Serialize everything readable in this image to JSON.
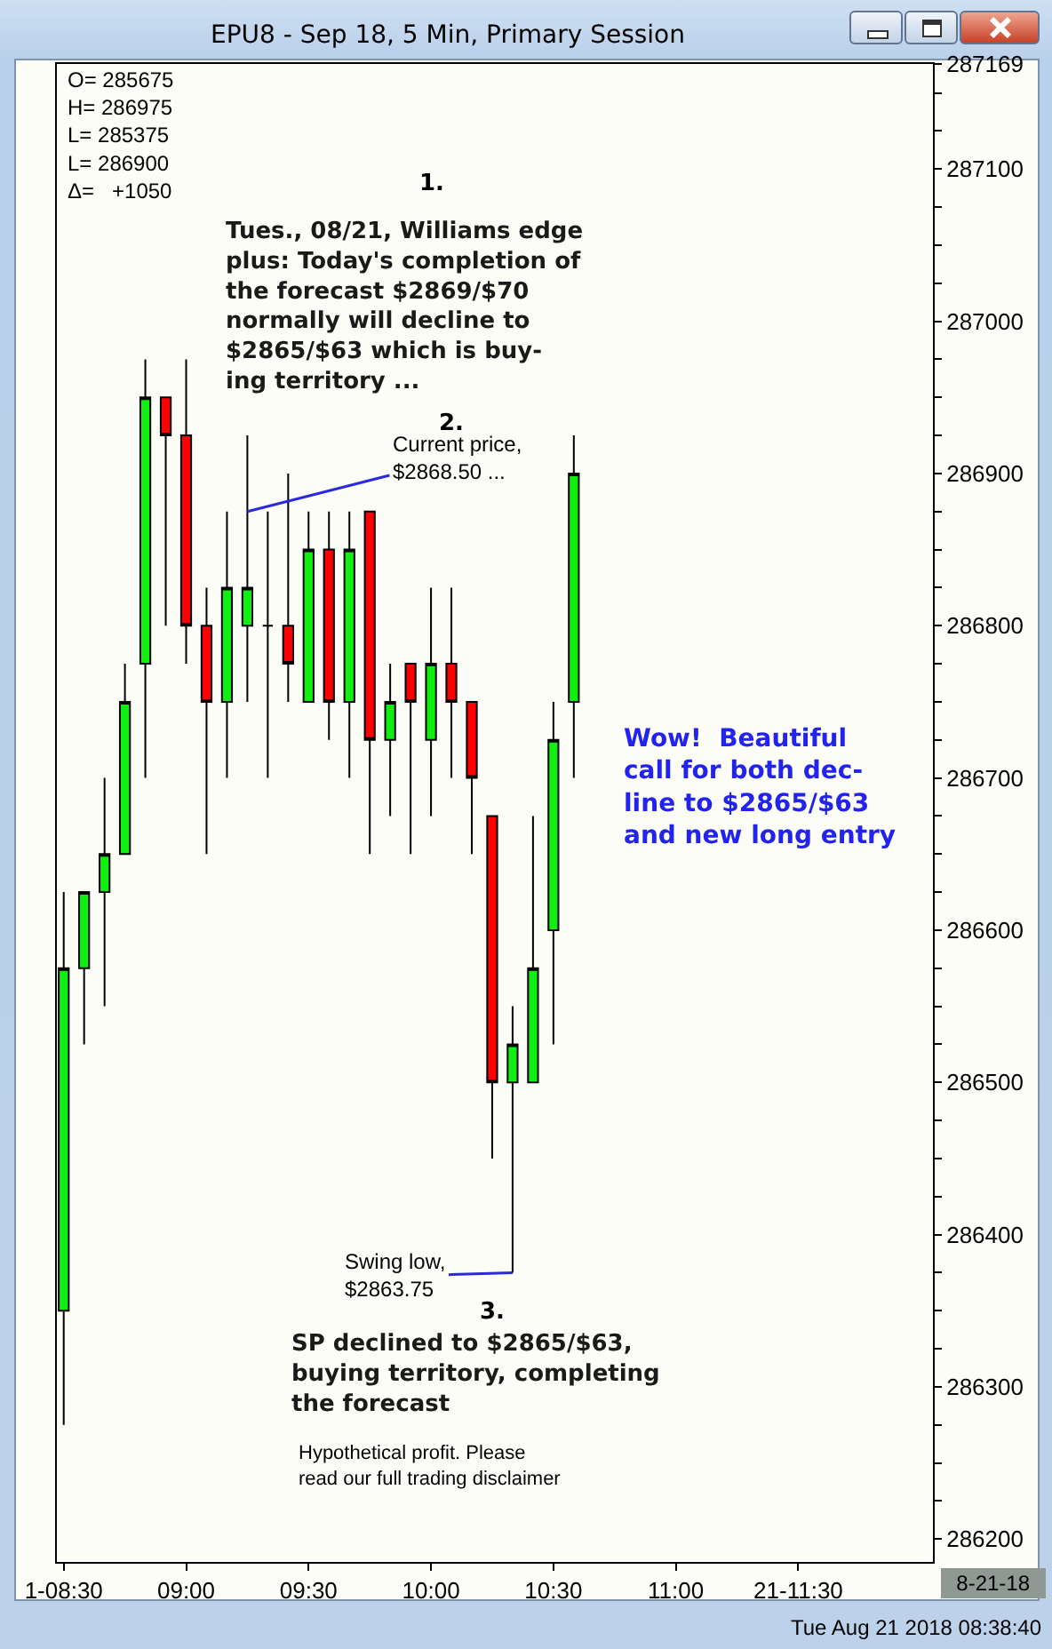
{
  "chart_data": {
    "type": "candlestick",
    "title": "EPU8 - Sep 18, 5 Min, Primary Session",
    "x": [
      8.5,
      8.5833,
      8.6667,
      8.75,
      8.8333,
      8.9167,
      9,
      9.0833,
      9.1667,
      9.25,
      9.3333,
      9.4167,
      9.5,
      9.5833,
      9.6667,
      9.75,
      9.8333,
      9.9167,
      10,
      10.0833,
      10.1667,
      10.25,
      10.3333,
      10.4167,
      10.5,
      10.5833
    ],
    "ohlc": [
      [
        286350,
        286625,
        286275,
        286575
      ],
      [
        286575,
        286625,
        286525,
        286625
      ],
      [
        286625,
        286700,
        286550,
        286650
      ],
      [
        286650,
        286775,
        286650,
        286750
      ],
      [
        286775,
        286975,
        286700,
        286950
      ],
      [
        286950,
        286950,
        286800,
        286925
      ],
      [
        286925,
        286975,
        286775,
        286800
      ],
      [
        286800,
        286825,
        286650,
        286750
      ],
      [
        286750,
        286875,
        286700,
        286825
      ],
      [
        286800,
        286925,
        286750,
        286825
      ],
      [
        286800,
        286875,
        286700,
        286800
      ],
      [
        286800,
        286900,
        286750,
        286775
      ],
      [
        286750,
        286875,
        286750,
        286850
      ],
      [
        286850,
        286875,
        286725,
        286750
      ],
      [
        286750,
        286875,
        286700,
        286850
      ],
      [
        286875,
        286875,
        286650,
        286725
      ],
      [
        286725,
        286775,
        286675,
        286750
      ],
      [
        286775,
        286775,
        286650,
        286750
      ],
      [
        286725,
        286825,
        286675,
        286775
      ],
      [
        286775,
        286825,
        286700,
        286750
      ],
      [
        286750,
        286750,
        286650,
        286700
      ],
      [
        286675,
        286675,
        286450,
        286500
      ],
      [
        286500,
        286550,
        286375,
        286525
      ],
      [
        286500,
        286675,
        286500,
        286575
      ],
      [
        286600,
        286750,
        286525,
        286725
      ],
      [
        286750,
        286925,
        286700,
        286900
      ]
    ],
    "colors": [
      "#11ee11",
      "#11ee11",
      "#11ee11",
      "#11ee11",
      "#11ee11",
      "#ff0000",
      "#ff0000",
      "#ff0000",
      "#11ee11",
      "#11ee11",
      "#000000",
      "#ff0000",
      "#11ee11",
      "#ff0000",
      "#11ee11",
      "#ff0000",
      "#11ee11",
      "#ff0000",
      "#11ee11",
      "#ff0000",
      "#ff0000",
      "#ff0000",
      "#11ee11",
      "#11ee11",
      "#11ee11",
      "#11ee11"
    ],
    "xlim": [
      8.472,
      12.05
    ],
    "xticks": [
      {
        "value": 8.5,
        "label": "1-08:30"
      },
      {
        "value": 9,
        "label": "09:00"
      },
      {
        "value": 9.5,
        "label": "09:30"
      },
      {
        "value": 10,
        "label": "10:00"
      },
      {
        "value": 10.5,
        "label": "10:30"
      },
      {
        "value": 11,
        "label": "11:00"
      },
      {
        "value": 11.5,
        "label": "21-11:30"
      }
    ],
    "ylim": [
      286185,
      287169
    ],
    "yticks": [
      286200,
      {
        "value": 286225,
        "label": null
      },
      {
        "value": 286250,
        "label": null
      },
      {
        "value": 286275,
        "label": null
      },
      286300,
      {
        "value": 286325,
        "label": null
      },
      {
        "value": 286350,
        "label": null
      },
      {
        "value": 286375,
        "label": null
      },
      286400,
      {
        "value": 286425,
        "label": null
      },
      {
        "value": 286450,
        "label": null
      },
      {
        "value": 286475,
        "label": null
      },
      286500,
      {
        "value": 286525,
        "label": null
      },
      {
        "value": 286550,
        "label": null
      },
      {
        "value": 286575,
        "label": null
      },
      286600,
      {
        "value": 286625,
        "label": null
      },
      {
        "value": 286650,
        "label": null
      },
      {
        "value": 286675,
        "label": null
      },
      286700,
      {
        "value": 286725,
        "label": null
      },
      {
        "value": 286750,
        "label": null
      },
      {
        "value": 286775,
        "label": null
      },
      286800,
      {
        "value": 286825,
        "label": null
      },
      {
        "value": 286850,
        "label": null
      },
      {
        "value": 286875,
        "label": null
      },
      286900,
      {
        "value": 286925,
        "label": null
      },
      {
        "value": 286950,
        "label": null
      },
      {
        "value": 286975,
        "label": null
      },
      287000,
      {
        "value": 287025,
        "label": null
      },
      {
        "value": 287050,
        "label": null
      },
      {
        "value": 287075,
        "label": null
      },
      287100,
      {
        "value": 287125,
        "label": null
      },
      {
        "value": 287150,
        "label": null
      },
      287169
    ],
    "annotations": [
      "O= 285675\nH= 286975\nL= 285375\nL= 286900\nΔ=   +1050",
      "1.",
      "Tues., 08/21, Williams edge\nplus: Today's completion of\nthe forecast $2869/$70\nnormally will decline to\n$2865/$63 which is buy-\ning territory ...",
      "2.",
      {
        "text": "Current price,\n$2868.50 ...",
        "x": 9.25,
        "y": 286875
      },
      "Wow!  Beautiful\ncall for both dec-\nline to $2865/$63\nand new long entry",
      {
        "text": "Swing low,\n$2863.75",
        "x": 10.3333,
        "y": 286375
      },
      "3.",
      "SP declined to $2865/$63,\nbuying territory, completing\nthe forecast",
      "Hypothetical profit. Please\nread our full trading disclaimer",
      "8-21-18",
      "Tue Aug 21 2018 08:38:40"
    ]
  }
}
